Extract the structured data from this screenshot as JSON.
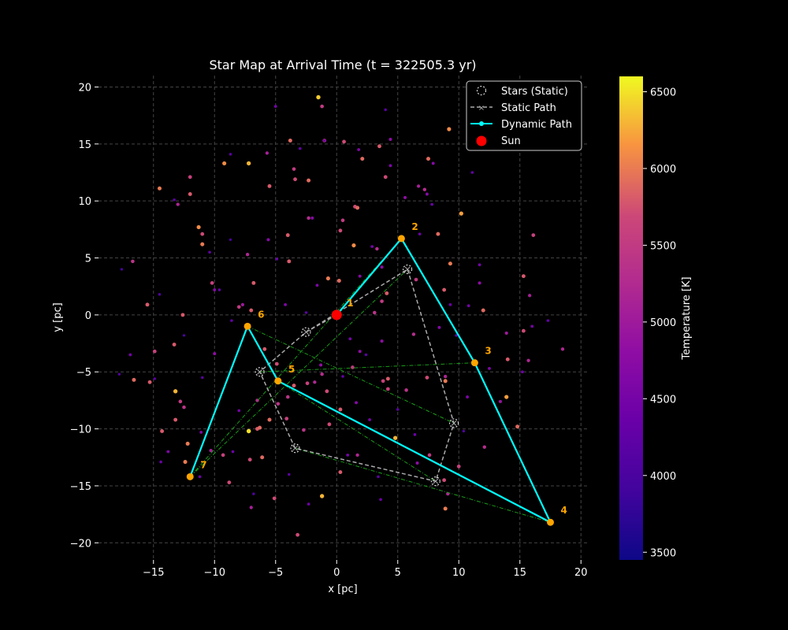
{
  "chart_data": {
    "type": "scatter",
    "title": "Star Map at Arrival Time (t = 322505.3 yr)",
    "xlabel": "x [pc]",
    "ylabel": "y [pc]",
    "xlim": [
      -19.5,
      20.5
    ],
    "ylim": [
      -21.5,
      21
    ],
    "xticks": [
      -15,
      -10,
      -5,
      0,
      5,
      10,
      15,
      20
    ],
    "yticks": [
      -20,
      -15,
      -10,
      -5,
      0,
      5,
      10,
      15,
      20
    ],
    "grid": true,
    "legend": {
      "location": "top-right",
      "entries": [
        "Stars (Static)",
        "Static Path",
        "Dynamic Path",
        "Sun"
      ]
    },
    "colorbar": {
      "label": "Temperature [K]",
      "range": [
        3450,
        6600
      ],
      "ticks": [
        3500,
        4000,
        4500,
        5000,
        5500,
        6000,
        6500
      ],
      "colormap": "plasma"
    },
    "sun": {
      "name": "Sun",
      "x": 0,
      "y": 0,
      "color": "#ff0000"
    },
    "static_stars": [
      {
        "x": 0.0,
        "y": 0.0
      },
      {
        "x": -2.5,
        "y": -1.5
      },
      {
        "x": 5.8,
        "y": 4.0
      },
      {
        "x": -6.3,
        "y": -5.0
      },
      {
        "x": 9.6,
        "y": -9.5
      },
      {
        "x": -3.4,
        "y": -11.7
      },
      {
        "x": 8.1,
        "y": -14.6
      }
    ],
    "static_path": [
      {
        "x": 0.0,
        "y": 0.0
      },
      {
        "x": -2.5,
        "y": -1.5
      },
      {
        "x": -6.3,
        "y": -5.0
      },
      {
        "x": -3.4,
        "y": -11.7
      },
      {
        "x": 8.1,
        "y": -14.6
      },
      {
        "x": 9.6,
        "y": -9.5
      },
      {
        "x": 5.8,
        "y": 4.0
      },
      {
        "x": -2.5,
        "y": -1.5
      }
    ],
    "dynamic_path": [
      {
        "label": "1",
        "x": 0.0,
        "y": 0.0
      },
      {
        "label": "2",
        "x": 5.3,
        "y": 6.7
      },
      {
        "label": "3",
        "x": 11.3,
        "y": -4.2
      },
      {
        "label": "4",
        "x": 17.5,
        "y": -18.2
      },
      {
        "label": "5",
        "x": -4.8,
        "y": -5.8
      },
      {
        "label": "6",
        "x": -7.3,
        "y": -1.0
      },
      {
        "label": "7",
        "x": -12.0,
        "y": -14.2
      }
    ],
    "green_links": [
      [
        [
          -7.3,
          -1.0
        ],
        [
          9.6,
          -9.5
        ]
      ],
      [
        [
          -6.3,
          -5.0
        ],
        [
          11.3,
          -4.2
        ]
      ],
      [
        [
          -4.8,
          -5.8
        ],
        [
          17.5,
          -18.2
        ]
      ],
      [
        [
          -3.4,
          -11.7
        ],
        [
          17.5,
          -18.2
        ]
      ],
      [
        [
          -12.0,
          -14.2
        ],
        [
          5.8,
          4.0
        ]
      ],
      [
        [
          -12.0,
          -14.2
        ],
        [
          5.3,
          6.7
        ]
      ],
      [
        [
          -4.8,
          -5.8
        ],
        [
          8.1,
          -14.6
        ]
      ]
    ],
    "background_stars": [
      {
        "x": -14.5,
        "y": 11.1,
        "t": 6000
      },
      {
        "x": -13.3,
        "y": 10.1,
        "t": 4200
      },
      {
        "x": -12.0,
        "y": 12.1,
        "t": 5600
      },
      {
        "x": -12.0,
        "y": 10.6,
        "t": 5800
      },
      {
        "x": -11.0,
        "y": 7.1,
        "t": 5700
      },
      {
        "x": -11.0,
        "y": 6.2,
        "t": 6000
      },
      {
        "x": -11.3,
        "y": 7.7,
        "t": 6100
      },
      {
        "x": -9.2,
        "y": 13.3,
        "t": 6100
      },
      {
        "x": -8.7,
        "y": 14.1,
        "t": 4200
      },
      {
        "x": -7.2,
        "y": 13.3,
        "t": 6300
      },
      {
        "x": -5.7,
        "y": 14.2,
        "t": 5100
      },
      {
        "x": -5.5,
        "y": 11.3,
        "t": 5800
      },
      {
        "x": -3.8,
        "y": 15.3,
        "t": 5900
      },
      {
        "x": -3.5,
        "y": 12.8,
        "t": 5500
      },
      {
        "x": -3.4,
        "y": 11.9,
        "t": 5700
      },
      {
        "x": -2.3,
        "y": 11.8,
        "t": 5900
      },
      {
        "x": -1.5,
        "y": 19.1,
        "t": 6400
      },
      {
        "x": -1.2,
        "y": 18.3,
        "t": 5500
      },
      {
        "x": -1.0,
        "y": 15.3,
        "t": 5600
      },
      {
        "x": 0.6,
        "y": 15.2,
        "t": 5700
      },
      {
        "x": 2.1,
        "y": 13.7,
        "t": 5900
      },
      {
        "x": 3.5,
        "y": 14.8,
        "t": 5800
      },
      {
        "x": 4.0,
        "y": 12.1,
        "t": 5700
      },
      {
        "x": 7.5,
        "y": 13.7,
        "t": 5900
      },
      {
        "x": 7.9,
        "y": 13.3,
        "t": 4700
      },
      {
        "x": 9.2,
        "y": 16.3,
        "t": 6100
      },
      {
        "x": 10.2,
        "y": 8.9,
        "t": 6200
      },
      {
        "x": 7.2,
        "y": 11.0,
        "t": 5300
      },
      {
        "x": 6.7,
        "y": 11.3,
        "t": 5100
      },
      {
        "x": 1.5,
        "y": 9.5,
        "t": 5700
      },
      {
        "x": 1.7,
        "y": 9.4,
        "t": 5900
      },
      {
        "x": 0.5,
        "y": 8.3,
        "t": 5500
      },
      {
        "x": -2.3,
        "y": 8.5,
        "t": 5300
      },
      {
        "x": -4.0,
        "y": 7.0,
        "t": 5800
      },
      {
        "x": 0.3,
        "y": 7.4,
        "t": 5700
      },
      {
        "x": 1.4,
        "y": 6.1,
        "t": 6100
      },
      {
        "x": 3.3,
        "y": 5.8,
        "t": 5300
      },
      {
        "x": 8.3,
        "y": 7.1,
        "t": 5900
      },
      {
        "x": 9.3,
        "y": 4.5,
        "t": 6000
      },
      {
        "x": 6.5,
        "y": 3.1,
        "t": 5500
      },
      {
        "x": 8.8,
        "y": 2.2,
        "t": 5800
      },
      {
        "x": -0.7,
        "y": 3.2,
        "t": 6000
      },
      {
        "x": 0.2,
        "y": 3.0,
        "t": 5900
      },
      {
        "x": -3.9,
        "y": 4.7,
        "t": 5800
      },
      {
        "x": -6.8,
        "y": 2.8,
        "t": 5800
      },
      {
        "x": -10.2,
        "y": 2.8,
        "t": 5600
      },
      {
        "x": -7.3,
        "y": 5.3,
        "t": 5200
      },
      {
        "x": 3.7,
        "y": 1.2,
        "t": 5500
      },
      {
        "x": 4.1,
        "y": 1.9,
        "t": 5800
      },
      {
        "x": 3.1,
        "y": 0.2,
        "t": 5400
      },
      {
        "x": 12.0,
        "y": 0.4,
        "t": 5900
      },
      {
        "x": 15.3,
        "y": 3.4,
        "t": 5800
      },
      {
        "x": 15.8,
        "y": 1.7,
        "t": 5100
      },
      {
        "x": 16.1,
        "y": 7.0,
        "t": 5600
      },
      {
        "x": 15.3,
        "y": -1.4,
        "t": 5700
      },
      {
        "x": 14.0,
        "y": -3.9,
        "t": 5800
      },
      {
        "x": 13.9,
        "y": -7.2,
        "t": 6200
      },
      {
        "x": 14.8,
        "y": -9.8,
        "t": 5900
      },
      {
        "x": 12.1,
        "y": -11.6,
        "t": 5300
      },
      {
        "x": 18.5,
        "y": -3.0,
        "t": 5200
      },
      {
        "x": 8.9,
        "y": -5.8,
        "t": 6000
      },
      {
        "x": 7.4,
        "y": -5.5,
        "t": 5700
      },
      {
        "x": 4.2,
        "y": -5.6,
        "t": 5800
      },
      {
        "x": 3.8,
        "y": -5.8,
        "t": 5600
      },
      {
        "x": 4.8,
        "y": -10.8,
        "t": 6300
      },
      {
        "x": 8.8,
        "y": -14.5,
        "t": 5700
      },
      {
        "x": 8.9,
        "y": -17.0,
        "t": 6000
      },
      {
        "x": 10.0,
        "y": -13.3,
        "t": 5600
      },
      {
        "x": -1.2,
        "y": -15.9,
        "t": 6300
      },
      {
        "x": 0.3,
        "y": -13.8,
        "t": 5800
      },
      {
        "x": -3.2,
        "y": -19.3,
        "t": 5700
      },
      {
        "x": -5.1,
        "y": -16.1,
        "t": 5700
      },
      {
        "x": -6.1,
        "y": -12.5,
        "t": 5900
      },
      {
        "x": -7.1,
        "y": -12.7,
        "t": 5700
      },
      {
        "x": -6.5,
        "y": -10.0,
        "t": 5800
      },
      {
        "x": -6.3,
        "y": -9.9,
        "t": 5900
      },
      {
        "x": -5.5,
        "y": -9.2,
        "t": 5900
      },
      {
        "x": -7.2,
        "y": -10.2,
        "t": 6500
      },
      {
        "x": -8.8,
        "y": -14.7,
        "t": 5700
      },
      {
        "x": -9.3,
        "y": -12.3,
        "t": 5600
      },
      {
        "x": -10.3,
        "y": -11.9,
        "t": 5100
      },
      {
        "x": -12.2,
        "y": -11.3,
        "t": 6000
      },
      {
        "x": -12.4,
        "y": -12.9,
        "t": 6000
      },
      {
        "x": -13.2,
        "y": -9.2,
        "t": 5800
      },
      {
        "x": -14.3,
        "y": -10.2,
        "t": 5800
      },
      {
        "x": -13.2,
        "y": -6.7,
        "t": 6300
      },
      {
        "x": -12.8,
        "y": -7.6,
        "t": 5500
      },
      {
        "x": -12.5,
        "y": -8.1,
        "t": 5400
      },
      {
        "x": -13.3,
        "y": -2.6,
        "t": 5800
      },
      {
        "x": -14.9,
        "y": -3.2,
        "t": 5600
      },
      {
        "x": -15.3,
        "y": -5.9,
        "t": 5800
      },
      {
        "x": -16.6,
        "y": -5.7,
        "t": 5900
      },
      {
        "x": -16.9,
        "y": -3.5,
        "t": 4500
      },
      {
        "x": -15.5,
        "y": 0.9,
        "t": 5800
      },
      {
        "x": -12.6,
        "y": 0.0,
        "t": 5800
      },
      {
        "x": -16.7,
        "y": 4.7,
        "t": 5400
      },
      {
        "x": -17.6,
        "y": 4.0,
        "t": 4000
      },
      {
        "x": -11.0,
        "y": -5.5,
        "t": 4200
      },
      {
        "x": -10.0,
        "y": -3.4,
        "t": 4800
      },
      {
        "x": -10.0,
        "y": 2.2,
        "t": 4700
      },
      {
        "x": -8.0,
        "y": 0.7,
        "t": 5500
      },
      {
        "x": -7.0,
        "y": 0.4,
        "t": 5800
      },
      {
        "x": -5.9,
        "y": -3.0,
        "t": 5800
      },
      {
        "x": -4.9,
        "y": -4.3,
        "t": 5700
      },
      {
        "x": -3.5,
        "y": -6.2,
        "t": 5800
      },
      {
        "x": -2.4,
        "y": -6.0,
        "t": 5600
      },
      {
        "x": -1.8,
        "y": -5.9,
        "t": 5200
      },
      {
        "x": -1.2,
        "y": -5.2,
        "t": 5300
      },
      {
        "x": -0.8,
        "y": -6.7,
        "t": 5700
      },
      {
        "x": 0.3,
        "y": -8.3,
        "t": 5800
      },
      {
        "x": -0.6,
        "y": -9.6,
        "t": 5700
      },
      {
        "x": -2.7,
        "y": -10.1,
        "t": 5400
      },
      {
        "x": -4.1,
        "y": -9.1,
        "t": 5600
      },
      {
        "x": -4.8,
        "y": -7.8,
        "t": 5400
      },
      {
        "x": -4.0,
        "y": -7.2,
        "t": 5400
      },
      {
        "x": -6.5,
        "y": -7.5,
        "t": 5300
      },
      {
        "x": 1.6,
        "y": -7.7,
        "t": 4700
      },
      {
        "x": 1.3,
        "y": -4.6,
        "t": 5500
      },
      {
        "x": 1.9,
        "y": -3.2,
        "t": 4800
      },
      {
        "x": 2.4,
        "y": -3.5,
        "t": 4200
      },
      {
        "x": 3.7,
        "y": -2.3,
        "t": 4800
      },
      {
        "x": 4.2,
        "y": -6.5,
        "t": 5600
      },
      {
        "x": 5.7,
        "y": -6.6,
        "t": 5400
      },
      {
        "x": 6.3,
        "y": -1.7,
        "t": 5300
      },
      {
        "x": 8.4,
        "y": -1.1,
        "t": 4700
      },
      {
        "x": 8.9,
        "y": -5.4,
        "t": 5200
      },
      {
        "x": 10.8,
        "y": 0.8,
        "t": 4500
      },
      {
        "x": 11.1,
        "y": 12.5,
        "t": 4300
      },
      {
        "x": 11.7,
        "y": 4.4,
        "t": 4500
      },
      {
        "x": 11.7,
        "y": 2.8,
        "t": 4800
      },
      {
        "x": 13.9,
        "y": -1.6,
        "t": 5000
      },
      {
        "x": 16.0,
        "y": -1.0,
        "t": 4500
      },
      {
        "x": 17.3,
        "y": -0.5,
        "t": 4300
      },
      {
        "x": 15.7,
        "y": -4.0,
        "t": 5200
      },
      {
        "x": 10.7,
        "y": -7.2,
        "t": 4600
      },
      {
        "x": 9.1,
        "y": -15.7,
        "t": 5200
      },
      {
        "x": 7.6,
        "y": -12.3,
        "t": 5500
      },
      {
        "x": 6.6,
        "y": -13.0,
        "t": 4800
      },
      {
        "x": 3.6,
        "y": -16.2,
        "t": 4400
      },
      {
        "x": 3.4,
        "y": -14.2,
        "t": 4200
      },
      {
        "x": 1.7,
        "y": -12.3,
        "t": 5200
      },
      {
        "x": 0.9,
        "y": -12.3,
        "t": 4500
      },
      {
        "x": -2.3,
        "y": -16.6,
        "t": 4400
      },
      {
        "x": -3.9,
        "y": -14.0,
        "t": 4200
      },
      {
        "x": -7.0,
        "y": -16.9,
        "t": 5100
      },
      {
        "x": -6.8,
        "y": -15.7,
        "t": 4100
      },
      {
        "x": -8.5,
        "y": -12.0,
        "t": 4400
      },
      {
        "x": -11.1,
        "y": -10.3,
        "t": 4600
      },
      {
        "x": -13.8,
        "y": -12.0,
        "t": 4600
      },
      {
        "x": -14.4,
        "y": -12.9,
        "t": 4400
      },
      {
        "x": -14.5,
        "y": 1.8,
        "t": 4100
      },
      {
        "x": -13.0,
        "y": 9.7,
        "t": 5200
      },
      {
        "x": -10.4,
        "y": 5.5,
        "t": 4300
      },
      {
        "x": -8.7,
        "y": 6.6,
        "t": 4000
      },
      {
        "x": -8.6,
        "y": -0.5,
        "t": 4300
      },
      {
        "x": -7.7,
        "y": 0.9,
        "t": 5000
      },
      {
        "x": -5.6,
        "y": 6.6,
        "t": 4700
      },
      {
        "x": -4.9,
        "y": 4.9,
        "t": 4300
      },
      {
        "x": -4.2,
        "y": 0.9,
        "t": 4600
      },
      {
        "x": -2.0,
        "y": 8.5,
        "t": 4700
      },
      {
        "x": -1.6,
        "y": 2.6,
        "t": 4600
      },
      {
        "x": -5.0,
        "y": 18.3,
        "t": 4500
      },
      {
        "x": -3.0,
        "y": 14.6,
        "t": 4300
      },
      {
        "x": -1.0,
        "y": 15.3,
        "t": 4500
      },
      {
        "x": 1.8,
        "y": 14.5,
        "t": 4600
      },
      {
        "x": 4.0,
        "y": 18.0,
        "t": 4200
      },
      {
        "x": 4.4,
        "y": 15.4,
        "t": 4800
      },
      {
        "x": 4.4,
        "y": 13.1,
        "t": 4600
      },
      {
        "x": 5.6,
        "y": 10.3,
        "t": 4800
      },
      {
        "x": 7.8,
        "y": 9.7,
        "t": 4400
      },
      {
        "x": 7.4,
        "y": 10.6,
        "t": 4700
      },
      {
        "x": 6.8,
        "y": 7.1,
        "t": 4400
      },
      {
        "x": 2.9,
        "y": 6.0,
        "t": 4500
      },
      {
        "x": 1.9,
        "y": 3.4,
        "t": 4700
      },
      {
        "x": 3.7,
        "y": 4.2,
        "t": 4800
      },
      {
        "x": 9.3,
        "y": 0.9,
        "t": 4400
      },
      {
        "x": 9.8,
        "y": -1.8,
        "t": 4300
      },
      {
        "x": 13.4,
        "y": -7.6,
        "t": 4900
      },
      {
        "x": 15.2,
        "y": -5.0,
        "t": 4400
      },
      {
        "x": 12.5,
        "y": -4.7,
        "t": 4600
      },
      {
        "x": -9.6,
        "y": 2.2,
        "t": 4300
      },
      {
        "x": -12.5,
        "y": -1.8,
        "t": 4000
      },
      {
        "x": -14.9,
        "y": -5.6,
        "t": 4200
      },
      {
        "x": -17.8,
        "y": -5.2,
        "t": 4100
      },
      {
        "x": -11.2,
        "y": -14.2,
        "t": 4400
      },
      {
        "x": -8.0,
        "y": -8.4,
        "t": 4500
      },
      {
        "x": -2.5,
        "y": 0.2,
        "t": 4200
      },
      {
        "x": -1.3,
        "y": -4.4,
        "t": 4800
      },
      {
        "x": 0.5,
        "y": -5.4,
        "t": 4300
      },
      {
        "x": 1.1,
        "y": -2.1,
        "t": 4500
      },
      {
        "x": 2.7,
        "y": -9.2,
        "t": 4500
      },
      {
        "x": 5.0,
        "y": -8.3,
        "t": 4200
      },
      {
        "x": 6.4,
        "y": -10.5,
        "t": 4400
      },
      {
        "x": 10.4,
        "y": -10.2,
        "t": 4100
      }
    ]
  }
}
